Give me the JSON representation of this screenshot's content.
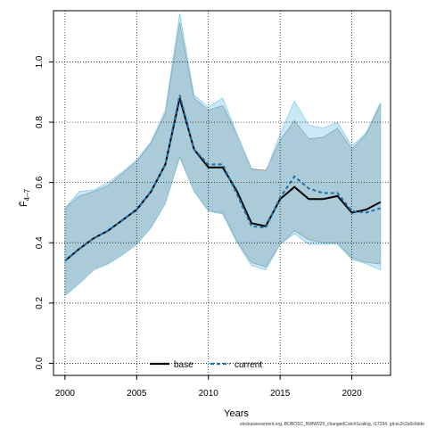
{
  "chart_data": {
    "type": "line",
    "xlabel": "Years",
    "ylabel": "F̄",
    "ylabel_sub": "4–7",
    "xlim": [
      1999.2,
      2022.7
    ],
    "ylim": [
      -0.04,
      1.17
    ],
    "x_ticks": [
      2000,
      2005,
      2010,
      2015,
      2020
    ],
    "y_ticks": [
      0.0,
      0.2,
      0.4,
      0.6,
      0.8,
      1.0
    ],
    "y_tick_labels": [
      "0.0",
      "0.2",
      "0.4",
      "0.6",
      "0.8",
      "1.0"
    ],
    "grid": true,
    "legend_position": "bottom-center",
    "footer": "stockassessment.org, BOBOSC_NWW025_changedCatchScaling, r17294, git:ec2c2a0c6dde",
    "x": [
      2000,
      2001,
      2002,
      2003,
      2004,
      2005,
      2006,
      2007,
      2008,
      2009,
      2010,
      2011,
      2012,
      2013,
      2014,
      2015,
      2016,
      2017,
      2018,
      2019,
      2020,
      2021,
      2022
    ],
    "series": [
      {
        "name": "base",
        "color": "#000000",
        "band_color": "#888888",
        "dash": "solid",
        "values": [
          0.34,
          0.38,
          0.415,
          0.44,
          0.475,
          0.51,
          0.57,
          0.66,
          0.88,
          0.71,
          0.65,
          0.65,
          0.57,
          0.465,
          0.455,
          0.545,
          0.585,
          0.545,
          0.545,
          0.555,
          0.5,
          0.51,
          0.535
        ],
        "lower": [
          0.225,
          0.265,
          0.31,
          0.33,
          0.36,
          0.395,
          0.45,
          0.53,
          0.685,
          0.57,
          0.505,
          0.5,
          0.405,
          0.335,
          0.32,
          0.395,
          0.44,
          0.41,
          0.4,
          0.4,
          0.35,
          0.335,
          0.33
        ],
        "upper": [
          0.515,
          0.555,
          0.57,
          0.59,
          0.63,
          0.67,
          0.73,
          0.83,
          1.13,
          0.88,
          0.84,
          0.855,
          0.76,
          0.645,
          0.64,
          0.74,
          0.805,
          0.745,
          0.75,
          0.78,
          0.71,
          0.76,
          0.86
        ]
      },
      {
        "name": "current",
        "color": "#1c6fa8",
        "band_color": "#87ceeb",
        "dash": "dashed",
        "values": [
          0.34,
          0.38,
          0.415,
          0.44,
          0.475,
          0.51,
          0.57,
          0.66,
          0.89,
          0.71,
          0.66,
          0.66,
          0.56,
          0.455,
          0.45,
          0.55,
          0.62,
          0.58,
          0.565,
          0.565,
          0.505,
          0.5,
          0.515
        ],
        "lower": [
          0.225,
          0.265,
          0.31,
          0.33,
          0.36,
          0.395,
          0.45,
          0.53,
          0.69,
          0.57,
          0.505,
          0.495,
          0.4,
          0.325,
          0.31,
          0.395,
          0.43,
          0.395,
          0.395,
          0.395,
          0.345,
          0.33,
          0.31
        ],
        "upper": [
          0.515,
          0.57,
          0.575,
          0.6,
          0.635,
          0.675,
          0.735,
          0.84,
          1.16,
          0.89,
          0.85,
          0.88,
          0.76,
          0.64,
          0.635,
          0.76,
          0.87,
          0.79,
          0.78,
          0.8,
          0.72,
          0.765,
          0.865
        ]
      }
    ]
  }
}
